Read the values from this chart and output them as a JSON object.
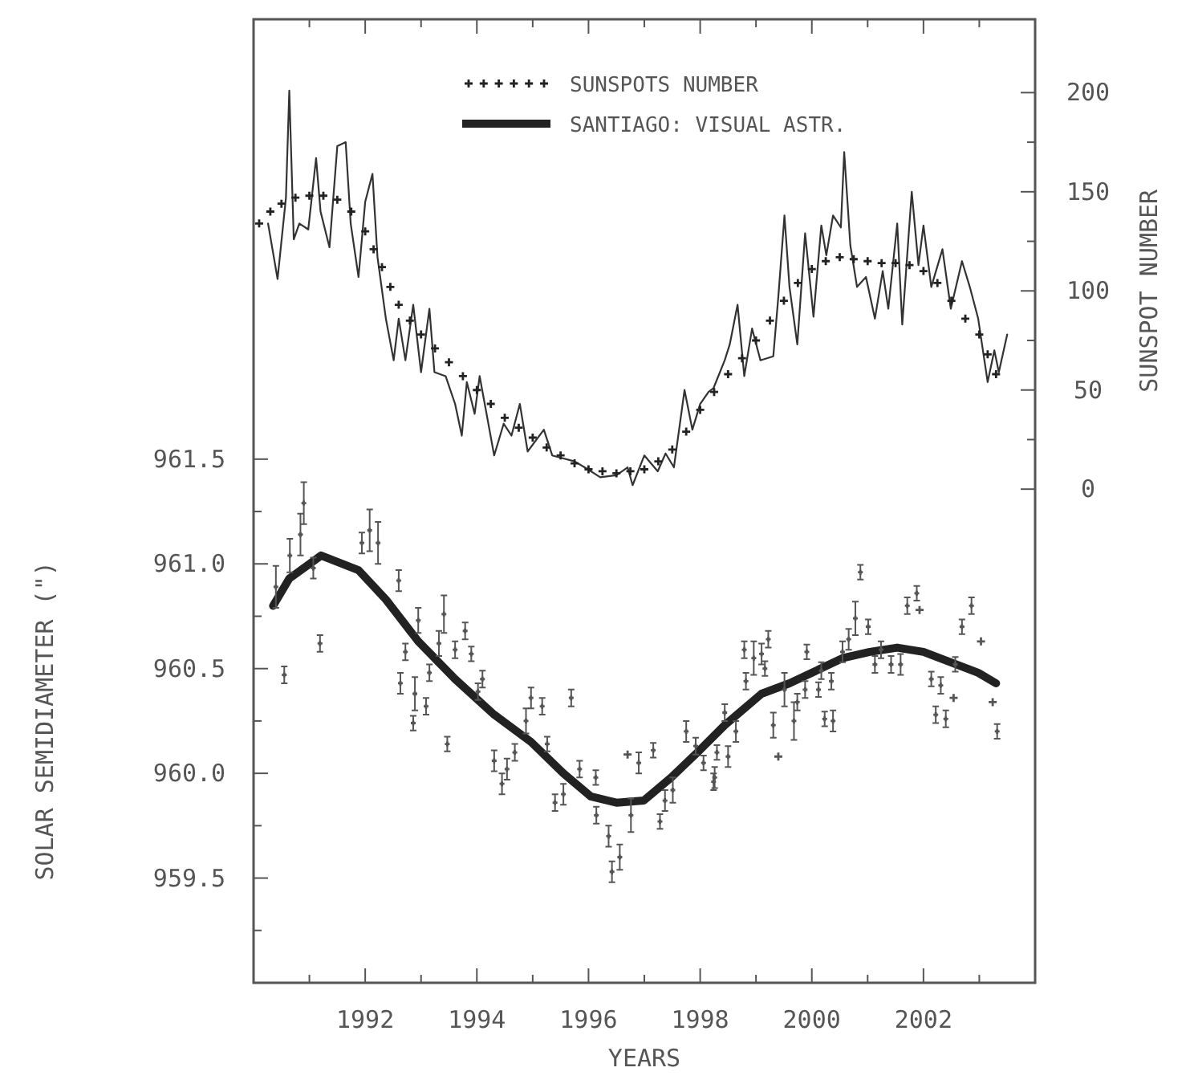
{
  "chart_data": {
    "type": "line",
    "xlabel": "YEARS",
    "ylabel": "SOLAR SEMIDIAMETER (\")",
    "y2label": "SUNSPOT NUMBER",
    "legend": "top",
    "grid": false,
    "xlim": [
      1990,
      2004
    ],
    "xticks": [
      {
        "value": 1991,
        "label": null
      },
      1992,
      {
        "value": 1993,
        "label": null
      },
      1994,
      {
        "value": 1995,
        "label": null
      },
      1996,
      {
        "value": 1997,
        "label": null
      },
      1998,
      {
        "value": 1999,
        "label": null
      },
      2000,
      {
        "value": 2001,
        "label": null
      },
      2002,
      {
        "value": 2003,
        "label": null
      }
    ],
    "ylim": [
      959,
      963.6
    ],
    "yticks": [
      {
        "value": 959.25,
        "label": null
      },
      959.5,
      {
        "value": 959.75,
        "label": null
      },
      {
        "value": 960,
        "label": "960.0"
      },
      {
        "value": 960.25,
        "label": null
      },
      960.5,
      {
        "value": 960.75,
        "label": null
      },
      {
        "value": 961,
        "label": "961.0"
      },
      {
        "value": 961.25,
        "label": null
      },
      961.5
    ],
    "y2lim": [
      -249,
      237
    ],
    "y2ticks": [
      0,
      {
        "value": 25,
        "label": null
      },
      50,
      {
        "value": 75,
        "label": null
      },
      100,
      {
        "value": 125,
        "label": null
      },
      150,
      {
        "value": 175,
        "label": null
      },
      200
    ],
    "series": [
      {
        "axis": "y2",
        "color": "#333333",
        "line_style": "solid",
        "marker": "none",
        "x": [
          1990.26,
          1990.43,
          1990.58,
          1990.64,
          1990.72,
          1990.82,
          1990.98,
          1991.12,
          1991.2,
          1991.36,
          1991.5,
          1991.65,
          1991.74,
          1991.88,
          1992.0,
          1992.13,
          1992.22,
          1992.37,
          1992.51,
          1992.6,
          1992.72,
          1992.86,
          1993.0,
          1993.15,
          1993.24,
          1993.44,
          1993.61,
          1993.73,
          1993.82,
          1993.96,
          1994.05,
          1994.31,
          1994.48,
          1994.62,
          1994.77,
          1994.91,
          1995.2,
          1995.35,
          1995.75,
          1995.93,
          1996.21,
          1996.5,
          1996.7,
          1996.79,
          1997.0,
          1997.24,
          1997.38,
          1997.53,
          1997.72,
          1997.86,
          1998.0,
          1998.15,
          1998.24,
          1998.44,
          1998.53,
          1998.67,
          1998.79,
          1998.93,
          1999.08,
          1999.31,
          1999.4,
          1999.51,
          1999.6,
          1999.74,
          1999.88,
          2000.03,
          2000.17,
          2000.26,
          2000.38,
          2000.52,
          2000.58,
          2000.69,
          2000.81,
          2000.97,
          2001.13,
          2001.27,
          2001.37,
          2001.53,
          2001.62,
          2001.79,
          2001.91,
          2002.0,
          2002.14,
          2002.34,
          2002.49,
          2002.69,
          2002.83,
          2002.98,
          2003.15,
          2003.27,
          2003.35,
          2003.5
        ],
        "values": [
          134,
          106,
          147,
          201,
          126,
          134,
          131,
          167,
          140,
          122,
          173,
          175,
          134,
          107,
          145,
          159,
          117,
          86,
          65,
          86,
          65,
          93,
          59,
          91,
          59,
          57,
          43,
          27,
          54,
          38,
          57,
          17,
          33,
          27,
          43,
          19,
          30,
          17,
          14,
          11,
          6,
          7,
          11,
          2,
          17,
          9,
          18,
          11,
          50,
          30,
          43,
          49,
          51,
          65,
          73,
          93,
          57,
          81,
          65,
          67,
          97,
          138,
          102,
          73,
          129,
          87,
          133,
          118,
          138,
          132,
          170,
          123,
          102,
          107,
          86,
          110,
          91,
          134,
          83,
          150,
          113,
          133,
          102,
          121,
          91,
          115,
          102,
          86,
          54,
          70,
          59,
          78
        ]
      },
      {
        "type": "scatter",
        "axis": "y2",
        "name": "SUNSPOTS NUMBER",
        "color": "#222222",
        "marker": "cross",
        "x": [
          1990.1,
          1990.3,
          1990.5,
          1990.75,
          1991.0,
          1991.25,
          1991.5,
          1991.75,
          1992.0,
          1992.15,
          1992.3,
          1992.45,
          1992.6,
          1992.8,
          1993.0,
          1993.25,
          1993.5,
          1993.75,
          1994.0,
          1994.25,
          1994.5,
          1994.75,
          1995.0,
          1995.25,
          1995.5,
          1995.75,
          1996.0,
          1996.25,
          1996.5,
          1996.75,
          1997.0,
          1997.25,
          1997.5,
          1997.75,
          1998.0,
          1998.25,
          1998.5,
          1998.75,
          1999.0,
          1999.25,
          1999.5,
          1999.75,
          2000.0,
          2000.25,
          2000.5,
          2000.75,
          2001.0,
          2001.25,
          2001.5,
          2001.75,
          2002.0,
          2002.25,
          2002.5,
          2002.75,
          2003.0,
          2003.15,
          2003.3
        ],
        "values": [
          134,
          140,
          144,
          147,
          148,
          148,
          146,
          140,
          130,
          121,
          112,
          102,
          93,
          85,
          78,
          71,
          64,
          57,
          50,
          43,
          36,
          31,
          26,
          21,
          17,
          13,
          10,
          9,
          8,
          9,
          10,
          14,
          20,
          29,
          40,
          49,
          58,
          66,
          75,
          85,
          95,
          104,
          111,
          115,
          117,
          116,
          115,
          114,
          114,
          113,
          110,
          104,
          95,
          86,
          78,
          68,
          58
        ]
      },
      {
        "type": "scatter",
        "axis": "y",
        "color": "#555555",
        "marker": "cross",
        "x": [
          1990.4,
          1990.55,
          1990.65,
          1990.84,
          1990.9,
          1991.07,
          1991.19,
          1991.94,
          1992.08,
          1992.23,
          1992.6,
          1992.72,
          1992.63,
          1992.86,
          1992.89,
          1992.95,
          1993.09,
          1993.15,
          1993.32,
          1993.41,
          1993.47,
          1993.61,
          1993.79,
          1993.9,
          1994.02,
          1994.1,
          1994.31,
          1994.45,
          1994.54,
          1994.68,
          1994.88,
          1994.97,
          1995.17,
          1995.26,
          1995.4,
          1995.55,
          1995.69,
          1995.84,
          1996.13,
          1996.14,
          1996.36,
          1996.42,
          1996.56,
          1996.76,
          1996.7,
          1996.9,
          1997.16,
          1997.28,
          1997.37,
          1997.51,
          1997.75,
          1997.92,
          1998.06,
          1998.24,
          1998.3,
          1998.26,
          1998.5,
          1998.64,
          1998.44,
          1998.79,
          1998.82,
          1998.96,
          1999.1,
          1999.22,
          1999.16,
          1999.31,
          1999.4,
          1999.51,
          1999.68,
          1999.74,
          1999.88,
          1999.91,
          2000.12,
          2000.17,
          2000.23,
          2000.38,
          2000.35,
          2000.55,
          2000.66,
          2000.78,
          2000.87,
          2001.01,
          2001.13,
          2001.24,
          2001.42,
          2001.59,
          2001.71,
          2001.88,
          2001.93,
          2002.14,
          2002.31,
          2002.22,
          2002.4,
          2002.54,
          2002.57,
          2002.69,
          2002.86,
          2003.03,
          2003.24,
          2003.32
        ],
        "values": [
          960.89,
          960.47,
          961.04,
          961.14,
          961.29,
          960.98,
          960.62,
          961.1,
          961.16,
          961.1,
          960.92,
          960.58,
          960.43,
          960.24,
          960.38,
          960.73,
          960.32,
          960.48,
          960.62,
          960.76,
          960.14,
          960.59,
          960.68,
          960.57,
          960.39,
          960.45,
          960.06,
          959.95,
          960.02,
          960.1,
          960.25,
          960.36,
          960.32,
          960.14,
          959.86,
          959.9,
          960.36,
          960.02,
          959.98,
          959.8,
          959.7,
          959.53,
          959.6,
          959.8,
          960.09,
          960.05,
          960.11,
          959.77,
          959.87,
          959.92,
          960.2,
          960.13,
          960.05,
          959.96,
          960.1,
          959.98,
          960.08,
          960.2,
          960.29,
          960.59,
          960.44,
          960.55,
          960.57,
          960.64,
          960.5,
          960.23,
          960.08,
          960.4,
          960.25,
          960.34,
          960.4,
          960.58,
          960.4,
          960.49,
          960.26,
          960.25,
          960.44,
          960.58,
          960.64,
          960.74,
          960.96,
          960.7,
          960.52,
          960.59,
          960.52,
          960.52,
          960.8,
          960.86,
          960.78,
          960.45,
          960.42,
          960.28,
          960.26,
          960.36,
          960.52,
          960.7,
          960.8,
          960.63,
          960.34,
          960.2
        ],
        "errors": [
          0.1,
          0.04,
          0.08,
          0.1,
          0.1,
          0.05,
          0.04,
          0.05,
          0.1,
          0.1,
          0.05,
          0.04,
          0.05,
          0.035,
          0.08,
          0.06,
          0.04,
          0.04,
          0.06,
          0.09,
          0.035,
          0.04,
          0.04,
          0.035,
          0.04,
          0.04,
          0.05,
          0.05,
          0.05,
          0.04,
          0.06,
          0.05,
          0.04,
          0.035,
          0.04,
          0.05,
          0.04,
          0.04,
          0.035,
          0.04,
          0.05,
          0.05,
          0.06,
          0.08,
          null,
          0.05,
          0.035,
          0.035,
          0.05,
          0.06,
          0.05,
          0.04,
          0.035,
          0.04,
          0.035,
          0.05,
          0.05,
          0.05,
          0.04,
          0.04,
          0.04,
          0.08,
          0.05,
          0.04,
          0.035,
          0.06,
          null,
          0.08,
          0.09,
          0.04,
          0.04,
          0.035,
          0.035,
          0.04,
          0.035,
          0.05,
          0.04,
          0.05,
          0.05,
          0.08,
          0.035,
          0.035,
          0.04,
          0.04,
          0.04,
          0.05,
          0.04,
          0.035,
          null,
          0.035,
          0.04,
          0.04,
          0.04,
          null,
          0.035,
          0.035,
          0.04,
          null,
          null,
          0.035
        ]
      },
      {
        "axis": "y",
        "name": "SANTIAGO: VISUAL ASTR.",
        "color": "#222222",
        "line_style": "solid",
        "marker": "none",
        "x": [
          1990.35,
          1990.64,
          1991.21,
          1991.88,
          1992.37,
          1992.95,
          1993.61,
          1994.31,
          1994.97,
          1995.55,
          1996.04,
          1996.5,
          1996.99,
          1997.48,
          1997.95,
          1998.44,
          1999.1,
          1999.6,
          2000.08,
          2000.55,
          2001.04,
          2001.53,
          2002.0,
          2002.49,
          2002.98,
          2003.3
        ],
        "values": [
          960.8,
          960.93,
          961.04,
          960.97,
          960.83,
          960.63,
          960.45,
          960.28,
          960.15,
          960.0,
          959.89,
          959.86,
          959.87,
          959.98,
          960.1,
          960.23,
          960.38,
          960.43,
          960.49,
          960.55,
          960.58,
          960.6,
          960.58,
          960.53,
          960.48,
          960.43
        ]
      }
    ]
  }
}
